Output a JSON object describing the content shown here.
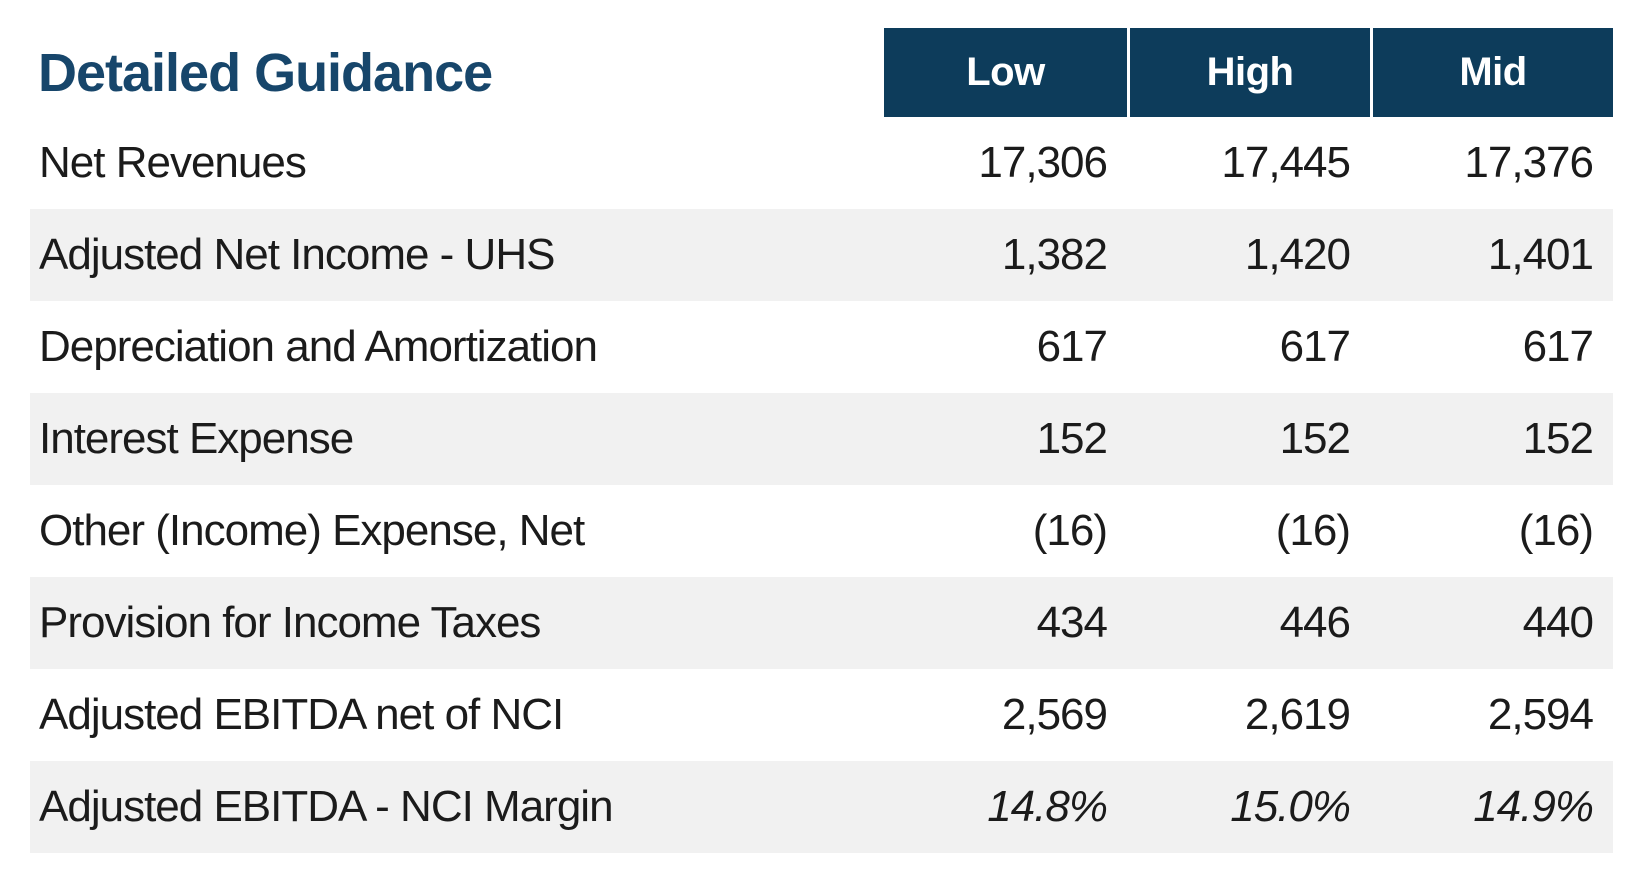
{
  "page": {
    "title": "Detailed Guidance"
  },
  "table": {
    "columns": [
      {
        "label": "Low"
      },
      {
        "label": "High"
      },
      {
        "label": "Mid"
      }
    ],
    "rows": [
      {
        "label": "Net Revenues",
        "values": [
          "17,306",
          "17,445",
          "17,376"
        ],
        "italic_values": false
      },
      {
        "label": "Adjusted Net Income - UHS",
        "values": [
          "1,382",
          "1,420",
          "1,401"
        ],
        "italic_values": false
      },
      {
        "label": "Depreciation and Amortization",
        "values": [
          "617",
          "617",
          "617"
        ],
        "italic_values": false
      },
      {
        "label": "Interest Expense",
        "values": [
          "152",
          "152",
          "152"
        ],
        "italic_values": false
      },
      {
        "label": "Other (Income) Expense, Net",
        "values": [
          "(16)",
          "(16)",
          "(16)"
        ],
        "italic_values": false
      },
      {
        "label": "Provision for Income Taxes",
        "values": [
          "434",
          "446",
          "440"
        ],
        "italic_values": false
      },
      {
        "label": "Adjusted EBITDA net of NCI",
        "values": [
          "2,569",
          "2,619",
          "2,594"
        ],
        "italic_values": false
      },
      {
        "label": "Adjusted EBITDA - NCI Margin",
        "values": [
          "14.8%",
          "15.0%",
          "14.9%"
        ],
        "italic_values": true
      }
    ]
  },
  "colors": {
    "header_bg": "#0d3c5b",
    "header_text": "#ffffff",
    "title_text": "#17466b",
    "stripe": "#f1f1f1",
    "body_text": "#1b1b1b"
  },
  "chart_data": {
    "type": "table",
    "title": "Detailed Guidance",
    "columns": [
      "Low",
      "High",
      "Mid"
    ],
    "rows": [
      {
        "label": "Net Revenues",
        "Low": 17306,
        "High": 17445,
        "Mid": 17376
      },
      {
        "label": "Adjusted Net Income - UHS",
        "Low": 1382,
        "High": 1420,
        "Mid": 1401
      },
      {
        "label": "Depreciation and Amortization",
        "Low": 617,
        "High": 617,
        "Mid": 617
      },
      {
        "label": "Interest Expense",
        "Low": 152,
        "High": 152,
        "Mid": 152
      },
      {
        "label": "Other (Income) Expense, Net",
        "Low": -16,
        "High": -16,
        "Mid": -16
      },
      {
        "label": "Provision for Income Taxes",
        "Low": 434,
        "High": 446,
        "Mid": 440
      },
      {
        "label": "Adjusted EBITDA net of NCI",
        "Low": 2569,
        "High": 2619,
        "Mid": 2594
      },
      {
        "label": "Adjusted EBITDA - NCI Margin",
        "Low": "14.8%",
        "High": "15.0%",
        "Mid": "14.9%"
      }
    ]
  }
}
